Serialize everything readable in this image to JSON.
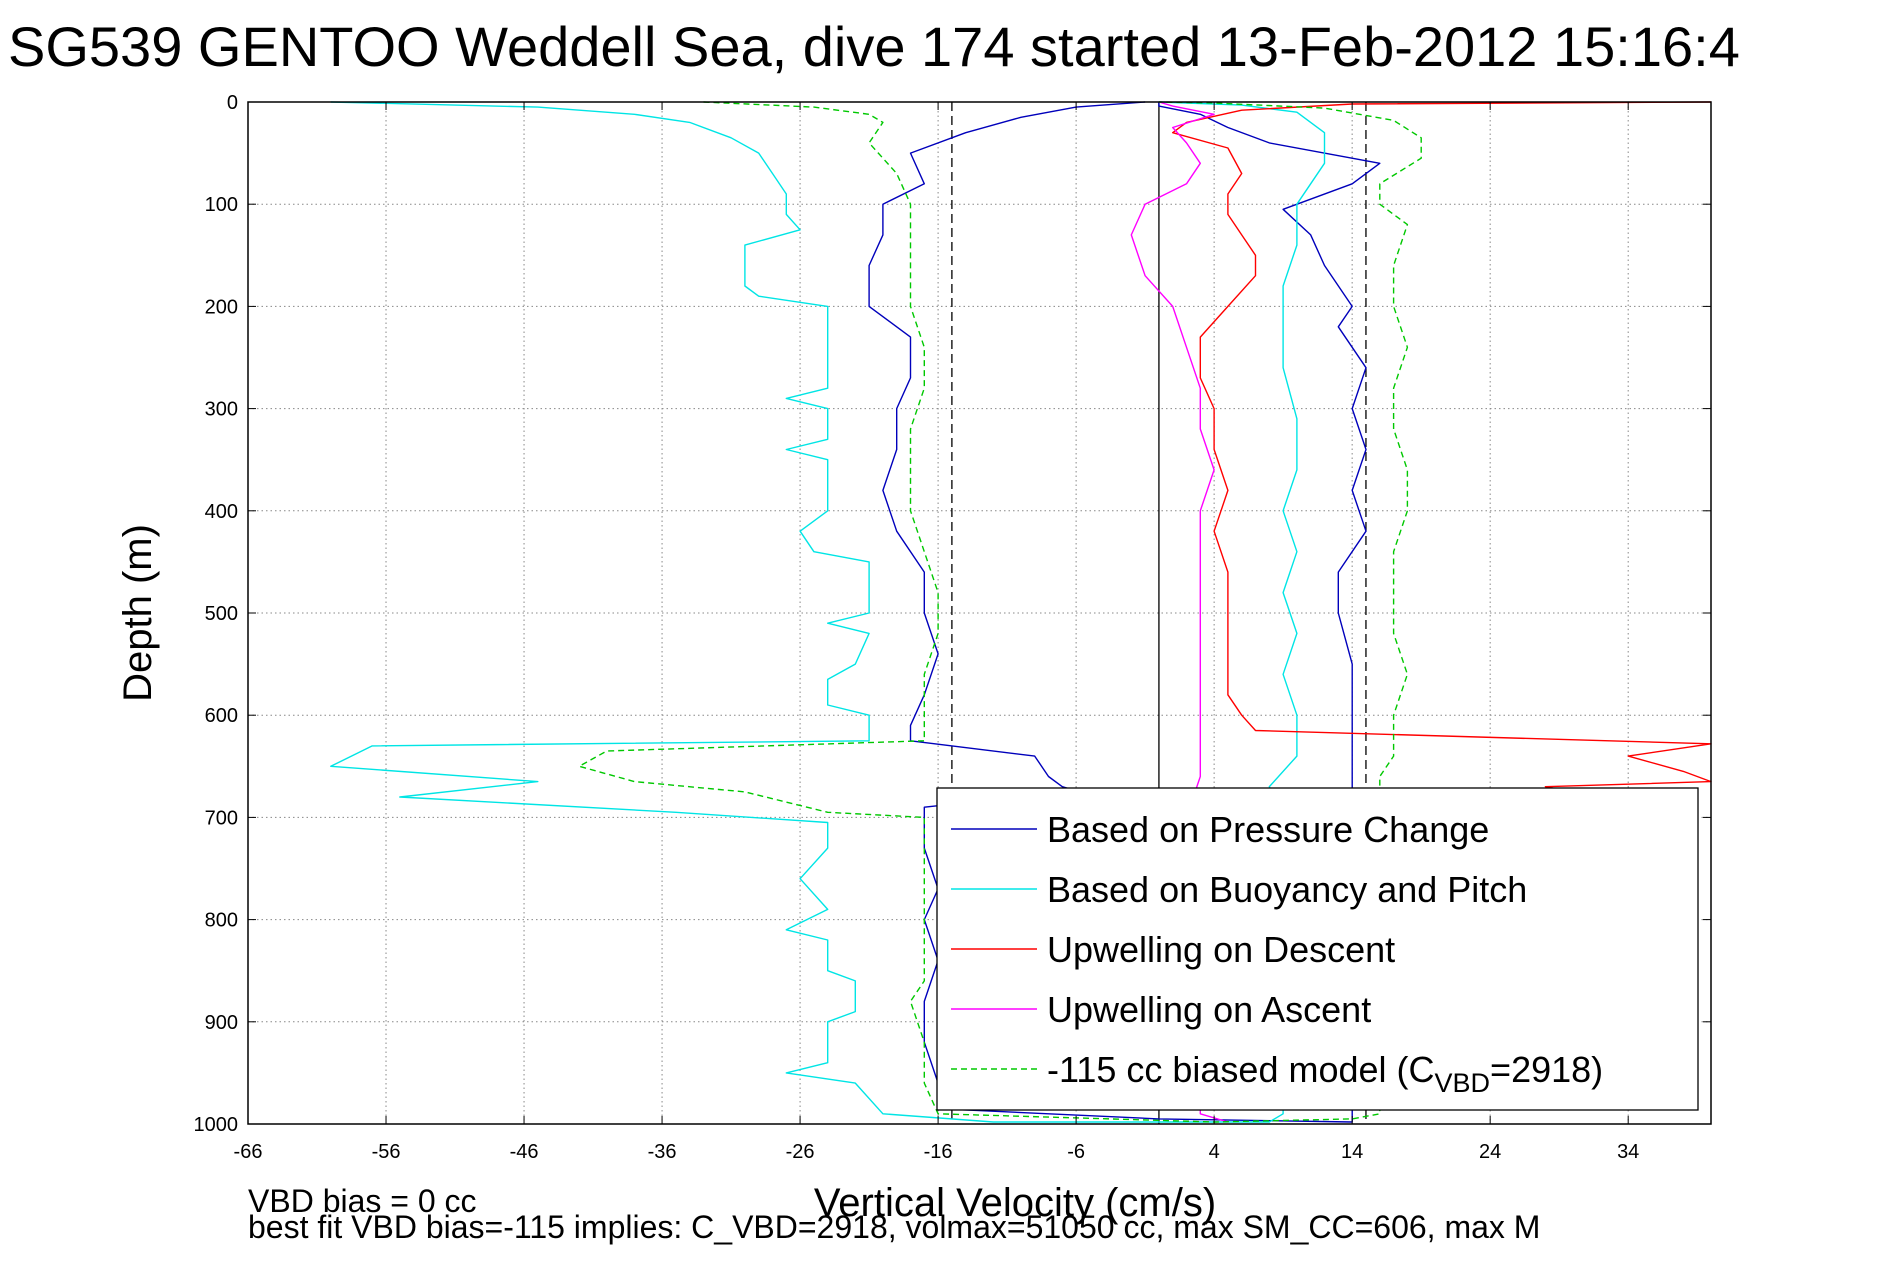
{
  "chart_data": {
    "type": "line",
    "title": "SG539 GENTOO Weddell Sea, dive 174 started 13-Feb-2012 15:16:4",
    "xlabel": "Vertical Velocity (cm/s)",
    "ylabel": "Depth (m)",
    "xlim": [
      -66,
      40
    ],
    "ylim": [
      0,
      1000
    ],
    "y_reversed": true,
    "x_ticks": [
      -66,
      -56,
      -46,
      -36,
      -26,
      -16,
      -6,
      4,
      14,
      24,
      34
    ],
    "x_tick_labels": [
      "-66",
      "-56",
      "-46",
      "-36",
      "-26",
      "-16",
      "-6",
      "4",
      "14",
      "24",
      "34"
    ],
    "y_ticks": [
      0,
      100,
      200,
      300,
      400,
      500,
      600,
      700,
      800,
      900,
      1000
    ],
    "y_tick_labels": [
      "0",
      "100",
      "200",
      "300",
      "400",
      "500",
      "600",
      "700",
      "800",
      "900",
      "1000"
    ],
    "grid": true,
    "legend_position": "bottom-right",
    "reference_lines": [
      {
        "x": 0,
        "style": "solid",
        "color": "#000000",
        "range": [
          0,
          1000
        ]
      },
      {
        "x": -15,
        "style": "dashed",
        "color": "#000000",
        "range": [
          0,
          1000
        ]
      },
      {
        "x": 15,
        "style": "dashed",
        "color": "#000000",
        "range": [
          0,
          1000
        ]
      }
    ],
    "series": [
      {
        "name": "Based on Pressure Change",
        "color": "#0000bb",
        "style": "solid",
        "points": [
          [
            -1,
            0
          ],
          [
            -6,
            5
          ],
          [
            -10,
            15
          ],
          [
            -14,
            30
          ],
          [
            -18,
            50
          ],
          [
            -17,
            80
          ],
          [
            -20,
            100
          ],
          [
            -20,
            130
          ],
          [
            -21,
            160
          ],
          [
            -21,
            200
          ],
          [
            -18,
            230
          ],
          [
            -18,
            270
          ],
          [
            -19,
            300
          ],
          [
            -19,
            340
          ],
          [
            -20,
            380
          ],
          [
            -19,
            420
          ],
          [
            -17,
            460
          ],
          [
            -17,
            500
          ],
          [
            -16,
            540
          ],
          [
            -17,
            580
          ],
          [
            -18,
            610
          ],
          [
            -18,
            625
          ],
          [
            -9,
            640
          ],
          [
            -8,
            660
          ],
          [
            -7,
            670
          ],
          [
            -6,
            674
          ],
          [
            -17,
            690
          ],
          [
            -17,
            730
          ],
          [
            -16,
            770
          ],
          [
            -17,
            800
          ],
          [
            -16,
            840
          ],
          [
            -17,
            880
          ],
          [
            -17,
            920
          ],
          [
            -16,
            960
          ],
          [
            -16,
            985
          ],
          [
            0,
            995
          ],
          [
            14,
            998
          ],
          [
            14,
            990
          ],
          [
            14,
            950
          ],
          [
            14,
            900
          ],
          [
            14,
            850
          ],
          [
            15,
            800
          ],
          [
            14,
            750
          ],
          [
            14,
            700
          ],
          [
            14,
            660
          ],
          [
            14,
            630
          ],
          [
            14,
            600
          ],
          [
            14,
            550
          ],
          [
            13,
            500
          ],
          [
            13,
            460
          ],
          [
            15,
            420
          ],
          [
            14,
            380
          ],
          [
            15,
            340
          ],
          [
            14,
            300
          ],
          [
            15,
            260
          ],
          [
            13,
            220
          ],
          [
            14,
            200
          ],
          [
            12,
            160
          ],
          [
            11,
            130
          ],
          [
            9,
            105
          ],
          [
            14,
            80
          ],
          [
            16,
            60
          ],
          [
            8,
            40
          ],
          [
            5,
            25
          ],
          [
            3,
            12
          ],
          [
            0,
            4
          ],
          [
            0,
            0
          ]
        ]
      },
      {
        "name": "Based on Buoyancy and Pitch",
        "color": "#00e5e5",
        "style": "solid",
        "points": [
          [
            -60,
            0
          ],
          [
            -45,
            5
          ],
          [
            -38,
            12
          ],
          [
            -34,
            20
          ],
          [
            -31,
            35
          ],
          [
            -29,
            50
          ],
          [
            -28,
            70
          ],
          [
            -27,
            90
          ],
          [
            -27,
            110
          ],
          [
            -26,
            125
          ],
          [
            -30,
            140
          ],
          [
            -30,
            160
          ],
          [
            -30,
            180
          ],
          [
            -29,
            190
          ],
          [
            -24,
            200
          ],
          [
            -24,
            240
          ],
          [
            -24,
            280
          ],
          [
            -27,
            290
          ],
          [
            -24,
            300
          ],
          [
            -24,
            330
          ],
          [
            -27,
            340
          ],
          [
            -24,
            350
          ],
          [
            -24,
            400
          ],
          [
            -26,
            420
          ],
          [
            -25,
            440
          ],
          [
            -21,
            450
          ],
          [
            -21,
            500
          ],
          [
            -24,
            510
          ],
          [
            -21,
            520
          ],
          [
            -22,
            550
          ],
          [
            -24,
            565
          ],
          [
            -24,
            590
          ],
          [
            -21,
            600
          ],
          [
            -21,
            625
          ],
          [
            -57,
            630
          ],
          [
            -60,
            650
          ],
          [
            -45,
            665
          ],
          [
            -55,
            680
          ],
          [
            -35,
            695
          ],
          [
            -24,
            705
          ],
          [
            -24,
            730
          ],
          [
            -26,
            760
          ],
          [
            -24,
            790
          ],
          [
            -27,
            810
          ],
          [
            -24,
            820
          ],
          [
            -24,
            850
          ],
          [
            -22,
            860
          ],
          [
            -22,
            890
          ],
          [
            -24,
            900
          ],
          [
            -24,
            940
          ],
          [
            -27,
            950
          ],
          [
            -22,
            960
          ],
          [
            -20,
            990
          ],
          [
            -12,
            998
          ],
          [
            8,
            998
          ],
          [
            9,
            990
          ],
          [
            9,
            950
          ],
          [
            9,
            900
          ],
          [
            9,
            860
          ],
          [
            9,
            820
          ],
          [
            8,
            780
          ],
          [
            9,
            740
          ],
          [
            9,
            700
          ],
          [
            8,
            670
          ],
          [
            10,
            640
          ],
          [
            10,
            600
          ],
          [
            9,
            560
          ],
          [
            10,
            520
          ],
          [
            9,
            480
          ],
          [
            10,
            440
          ],
          [
            9,
            400
          ],
          [
            10,
            360
          ],
          [
            10,
            310
          ],
          [
            9,
            260
          ],
          [
            9,
            220
          ],
          [
            9,
            180
          ],
          [
            10,
            140
          ],
          [
            10,
            100
          ],
          [
            12,
            60
          ],
          [
            12,
            30
          ],
          [
            10,
            10
          ],
          [
            6,
            3
          ],
          [
            0,
            0
          ]
        ]
      },
      {
        "name": "Upwelling on Descent",
        "color": "#ff0000",
        "style": "solid",
        "points": [
          [
            40,
            0
          ],
          [
            14,
            2
          ],
          [
            6,
            8
          ],
          [
            2,
            20
          ],
          [
            1,
            30
          ],
          [
            5,
            45
          ],
          [
            6,
            70
          ],
          [
            5,
            90
          ],
          [
            5,
            110
          ],
          [
            6,
            130
          ],
          [
            7,
            150
          ],
          [
            7,
            170
          ],
          [
            5,
            200
          ],
          [
            3,
            230
          ],
          [
            3,
            270
          ],
          [
            4,
            300
          ],
          [
            4,
            340
          ],
          [
            5,
            380
          ],
          [
            4,
            420
          ],
          [
            5,
            460
          ],
          [
            5,
            500
          ],
          [
            5,
            540
          ],
          [
            5,
            580
          ],
          [
            6,
            600
          ],
          [
            7,
            615
          ],
          [
            40,
            628
          ],
          [
            34,
            640
          ],
          [
            38,
            655
          ],
          [
            40,
            665
          ],
          [
            28,
            670
          ],
          [
            30,
            675
          ]
        ]
      },
      {
        "name": "Upwelling on Ascent",
        "color": "#ff00ff",
        "style": "solid",
        "points": [
          [
            5,
            998
          ],
          [
            3,
            990
          ],
          [
            3,
            950
          ],
          [
            3,
            900
          ],
          [
            2,
            850
          ],
          [
            3,
            800
          ],
          [
            2,
            750
          ],
          [
            2,
            700
          ],
          [
            3,
            660
          ],
          [
            3,
            630
          ],
          [
            3,
            600
          ],
          [
            3,
            560
          ],
          [
            3,
            520
          ],
          [
            3,
            480
          ],
          [
            3,
            440
          ],
          [
            3,
            400
          ],
          [
            4,
            360
          ],
          [
            3,
            320
          ],
          [
            3,
            280
          ],
          [
            2,
            240
          ],
          [
            1,
            200
          ],
          [
            -1,
            170
          ],
          [
            -2,
            130
          ],
          [
            -1,
            100
          ],
          [
            2,
            80
          ],
          [
            3,
            60
          ],
          [
            2,
            40
          ],
          [
            1,
            25
          ],
          [
            4,
            12
          ],
          [
            1,
            4
          ],
          [
            0,
            0
          ]
        ]
      },
      {
        "name": "-115 cc biased model (C_VBD=2918)",
        "color": "#00c800",
        "style": "dashed",
        "points": [
          [
            -33,
            0
          ],
          [
            -25,
            5
          ],
          [
            -21,
            12
          ],
          [
            -20,
            20
          ],
          [
            -21,
            40
          ],
          [
            -19,
            70
          ],
          [
            -18,
            100
          ],
          [
            -18,
            120
          ],
          [
            -18,
            150
          ],
          [
            -18,
            200
          ],
          [
            -17,
            240
          ],
          [
            -17,
            280
          ],
          [
            -18,
            320
          ],
          [
            -18,
            360
          ],
          [
            -18,
            400
          ],
          [
            -17,
            440
          ],
          [
            -16,
            480
          ],
          [
            -16,
            520
          ],
          [
            -17,
            560
          ],
          [
            -17,
            600
          ],
          [
            -17,
            625
          ],
          [
            -40,
            635
          ],
          [
            -42,
            650
          ],
          [
            -38,
            665
          ],
          [
            -30,
            675
          ],
          [
            -24,
            695
          ],
          [
            -17,
            700
          ],
          [
            -17,
            740
          ],
          [
            -17,
            780
          ],
          [
            -17,
            820
          ],
          [
            -17,
            860
          ],
          [
            -18,
            880
          ],
          [
            -17,
            920
          ],
          [
            -17,
            960
          ],
          [
            -16,
            990
          ],
          [
            4,
            998
          ],
          [
            14,
            995
          ],
          [
            16,
            990
          ],
          [
            16,
            950
          ],
          [
            16,
            900
          ],
          [
            17,
            860
          ],
          [
            16,
            820
          ],
          [
            16,
            780
          ],
          [
            16,
            740
          ],
          [
            16,
            700
          ],
          [
            16,
            660
          ],
          [
            17,
            640
          ],
          [
            17,
            600
          ],
          [
            18,
            560
          ],
          [
            17,
            520
          ],
          [
            17,
            480
          ],
          [
            17,
            440
          ],
          [
            18,
            400
          ],
          [
            18,
            360
          ],
          [
            17,
            320
          ],
          [
            17,
            280
          ],
          [
            18,
            240
          ],
          [
            17,
            200
          ],
          [
            17,
            160
          ],
          [
            18,
            120
          ],
          [
            16,
            100
          ],
          [
            16,
            80
          ],
          [
            19,
            55
          ],
          [
            19,
            35
          ],
          [
            17,
            18
          ],
          [
            12,
            6
          ],
          [
            4,
            1
          ],
          [
            0,
            0
          ]
        ]
      }
    ],
    "legend": {
      "entries": [
        "Based on Pressure Change",
        "Based on Buoyancy and Pitch",
        "Upwelling on Descent",
        "Upwelling on Ascent"
      ],
      "last_entry_prefix": "-115 cc biased model (C",
      "last_entry_subscript": "VBD",
      "last_entry_suffix": "=2918)"
    },
    "annotations": [
      "VBD bias = 0 cc",
      "best fit VBD bias=-115 implies: C_VBD=2918, volmax=51050 cc, max SM_CC=606, max M"
    ]
  }
}
